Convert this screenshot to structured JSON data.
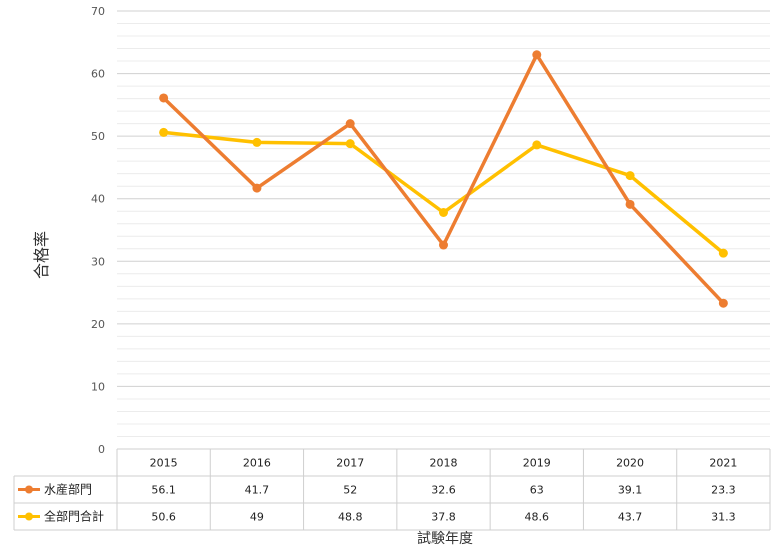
{
  "chart_data": {
    "type": "line",
    "title": "",
    "xlabel": "試験年度",
    "ylabel": "合格率",
    "ylim": [
      0,
      70
    ],
    "y_ticks": [
      0,
      10,
      20,
      30,
      40,
      50,
      60,
      70
    ],
    "categories": [
      "2015",
      "2016",
      "2017",
      "2018",
      "2019",
      "2020",
      "2021"
    ],
    "grid": true,
    "legend": "data-table",
    "series": [
      {
        "name": "水産部門",
        "color": "#ED7D31",
        "values": [
          56.1,
          41.7,
          52,
          32.6,
          63,
          39.1,
          23.3
        ],
        "labels": [
          "56.1",
          "41.7",
          "52",
          "32.6",
          "63",
          "39.1",
          "23.3"
        ]
      },
      {
        "name": "全部門合計",
        "color": "#FFC000",
        "values": [
          50.6,
          49,
          48.8,
          37.8,
          48.6,
          43.7,
          31.3
        ],
        "labels": [
          "50.6",
          "49",
          "48.8",
          "37.8",
          "48.6",
          "43.7",
          "31.3"
        ]
      }
    ]
  }
}
